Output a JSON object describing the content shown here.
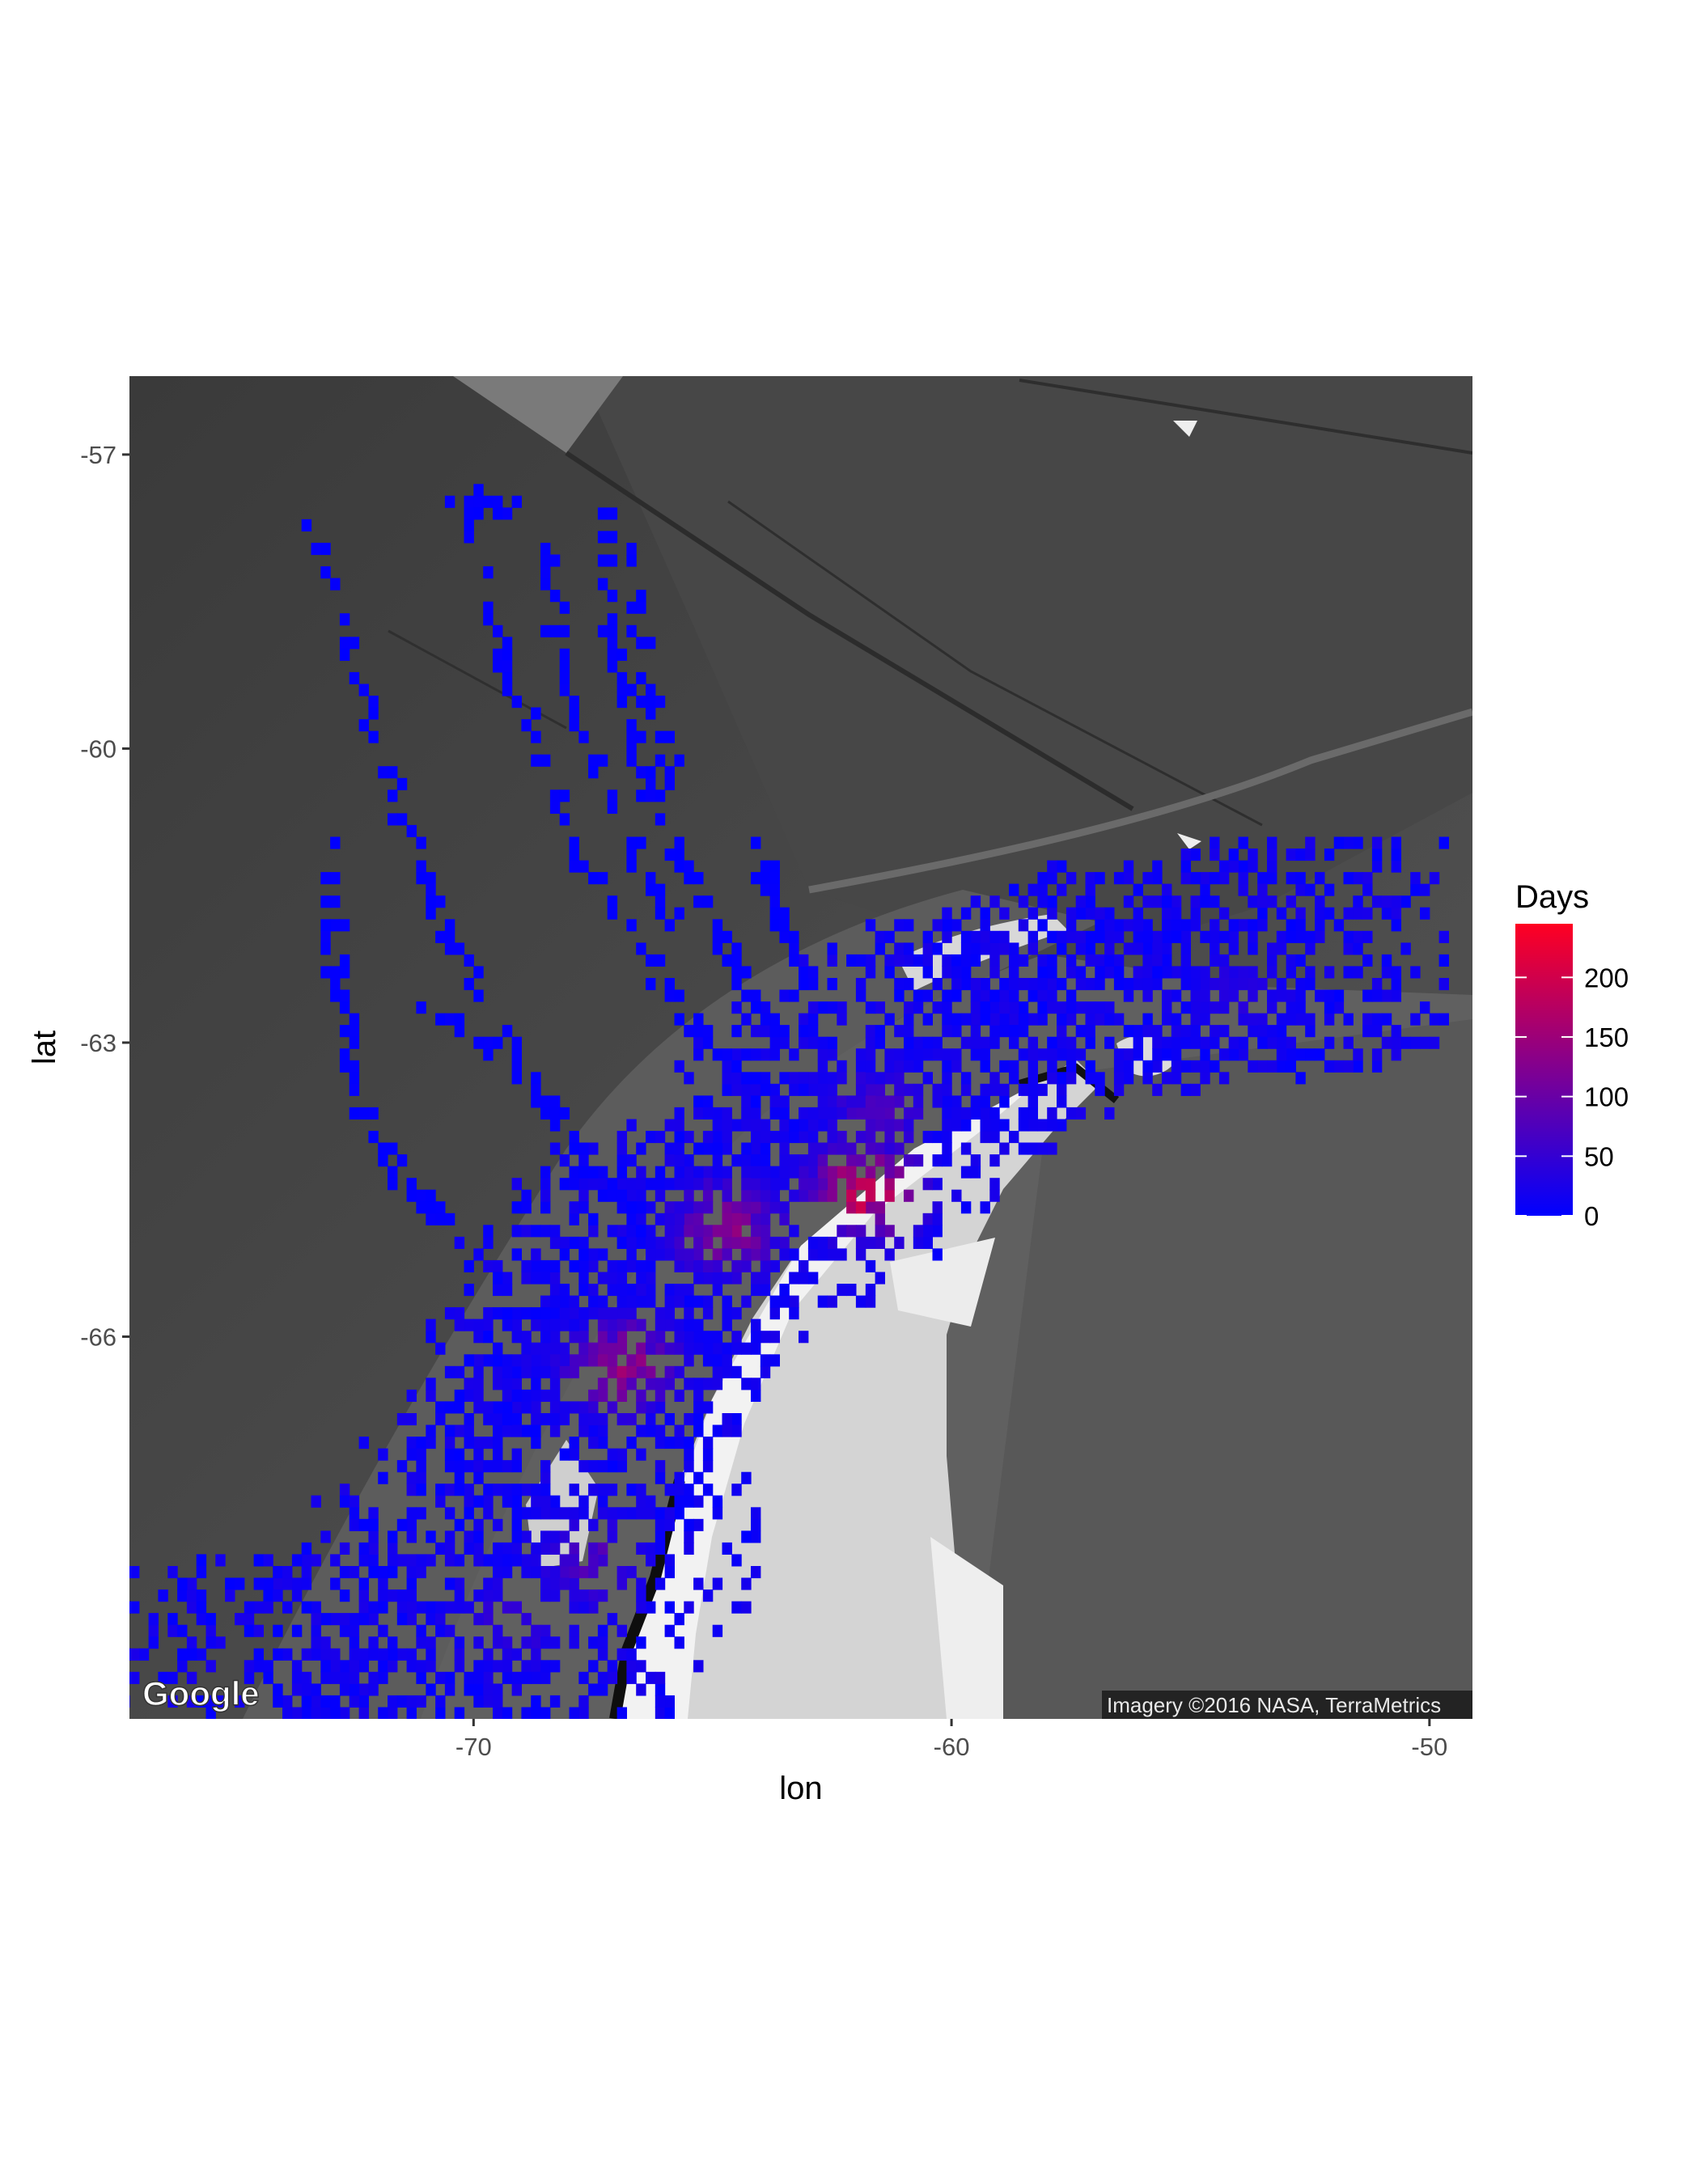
{
  "chart_data": {
    "type": "heatmap",
    "title": "",
    "xlabel": "lon",
    "ylabel": "lat",
    "xlim": [
      -77.2,
      -49.1
    ],
    "ylim": [
      -69.9,
      -56.2
    ],
    "x_ticks": [
      -70,
      -60,
      -50
    ],
    "x_tick_labels": [
      "-70",
      "-60",
      "-50"
    ],
    "y_ticks": [
      -57,
      -60,
      -63,
      -66
    ],
    "y_tick_labels": [
      "-57",
      "-60",
      "-63",
      "-66"
    ],
    "grid": false,
    "basemap": "satellite imagery (Antarctic Peninsula)",
    "legend": {
      "title": "Days",
      "position": "right",
      "range": [
        0,
        245
      ],
      "breaks": [
        0,
        50,
        100,
        150,
        200
      ],
      "break_labels": [
        "0",
        "50",
        "100",
        "150",
        "200"
      ],
      "colors": {
        "low": "#0000ff",
        "high": "#ff0022"
      }
    },
    "density_cores": [
      {
        "lon": -61.8,
        "lat": -64.5,
        "days": 230
      },
      {
        "lon": -64.7,
        "lat": -64.9,
        "days": 150
      },
      {
        "lon": -66.9,
        "lat": -66.3,
        "days": 160
      },
      {
        "lon": -67.5,
        "lat": -68.3,
        "days": 90
      },
      {
        "lon": -61.5,
        "lat": -63.7,
        "days": 80
      },
      {
        "lon": -54.0,
        "lat": -62.5,
        "days": 45
      },
      {
        "lon": -69.2,
        "lat": -68.9,
        "days": 60
      }
    ],
    "track_lines": [
      [
        [
          -73.3,
          -57.5
        ],
        [
          -72.6,
          -59.0
        ],
        [
          -71.6,
          -60.5
        ],
        [
          -70.6,
          -61.8
        ],
        [
          -69.0,
          -63.2
        ],
        [
          -67.5,
          -64.3
        ],
        [
          -66.2,
          -65.0
        ]
      ],
      [
        [
          -70.2,
          -57.5
        ],
        [
          -69.4,
          -59.0
        ],
        [
          -68.3,
          -60.5
        ],
        [
          -66.9,
          -61.8
        ],
        [
          -65.4,
          -62.8
        ],
        [
          -64.0,
          -63.5
        ]
      ],
      [
        [
          -67.3,
          -57.5
        ],
        [
          -67.1,
          -58.8
        ],
        [
          -66.6,
          -60.0
        ],
        [
          -65.6,
          -61.2
        ],
        [
          -64.4,
          -62.3
        ],
        [
          -63.5,
          -63.0
        ]
      ],
      [
        [
          -68.6,
          -57.8
        ],
        [
          -68.1,
          -59.3
        ],
        [
          -67.0,
          -60.7
        ],
        [
          -65.8,
          -61.8
        ]
      ],
      [
        [
          -73.0,
          -60.8
        ],
        [
          -72.9,
          -62.2
        ],
        [
          -72.5,
          -63.5
        ],
        [
          -71.6,
          -64.4
        ],
        [
          -70.6,
          -64.8
        ]
      ],
      [
        [
          -71.0,
          -62.6
        ],
        [
          -69.4,
          -63.2
        ],
        [
          -68.0,
          -63.8
        ]
      ],
      [
        [
          -64.0,
          -61.1
        ],
        [
          -63.5,
          -61.8
        ],
        [
          -63.0,
          -62.4
        ]
      ],
      [
        [
          -66.9,
          -57.8
        ],
        [
          -66.4,
          -59.3
        ],
        [
          -65.8,
          -60.4
        ]
      ],
      [
        [
          -70.5,
          -57.4
        ],
        [
          -69.0,
          -57.6
        ]
      ]
    ]
  },
  "attribution": {
    "logo_text": "Google",
    "imagery_text": "Imagery ©2016 NASA, TerraMetrics"
  }
}
